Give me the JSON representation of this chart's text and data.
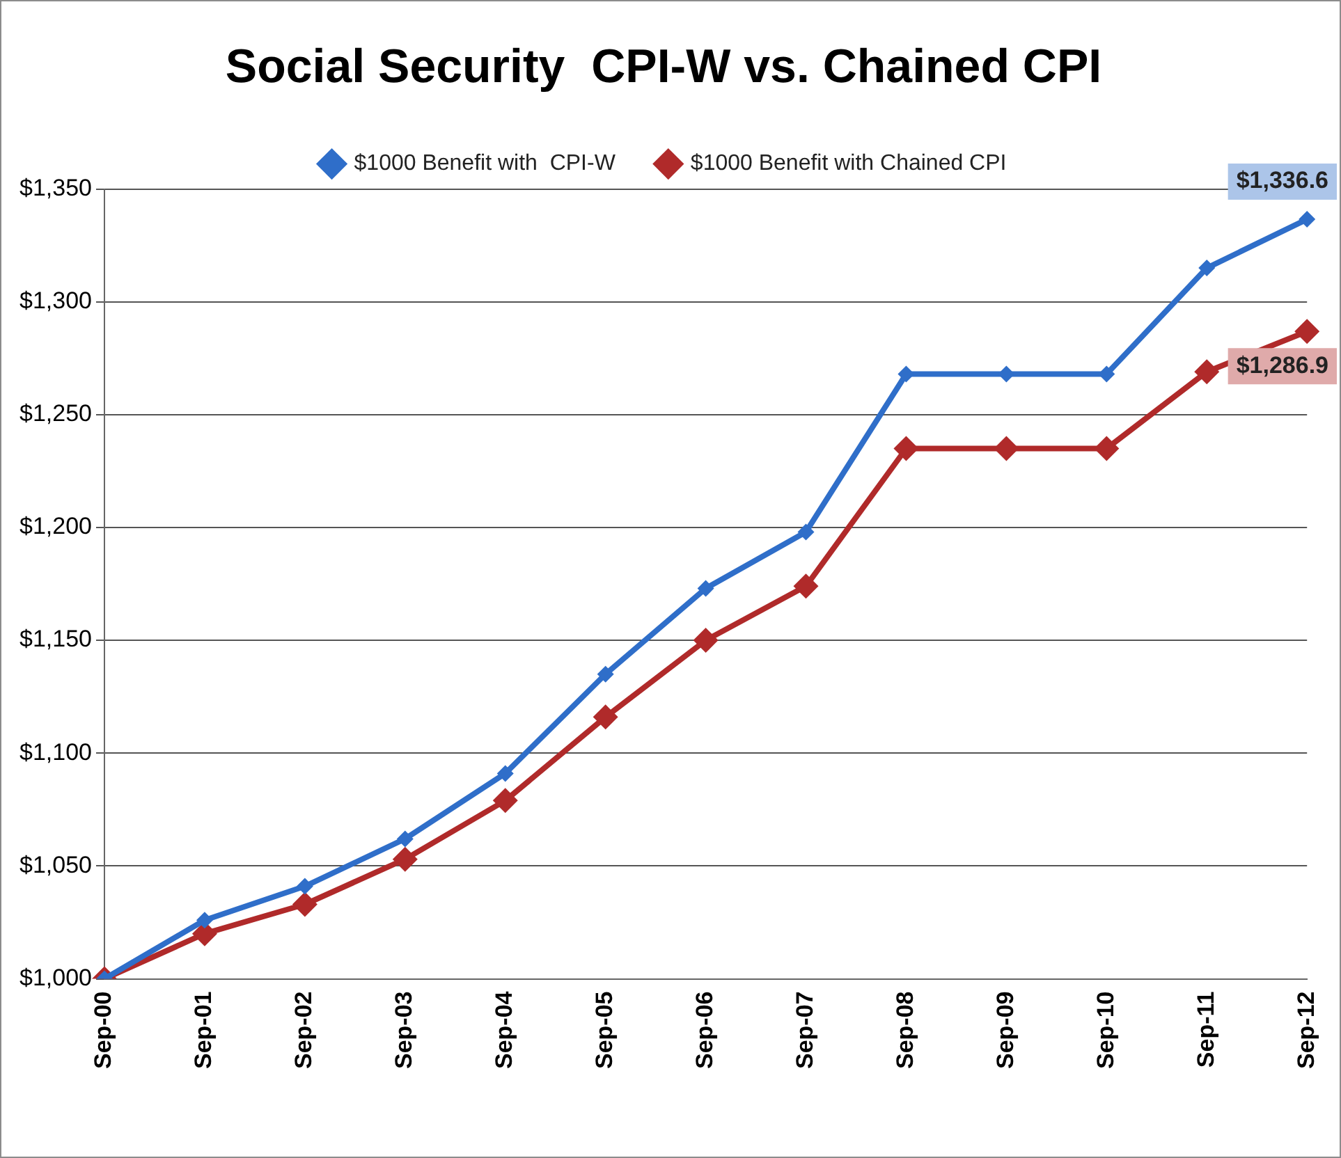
{
  "chart_data": {
    "type": "line",
    "title": "Social Security  CPI-W vs. Chained CPI",
    "categories": [
      "Sep-00",
      "Sep-01",
      "Sep-02",
      "Sep-03",
      "Sep-04",
      "Sep-05",
      "Sep-06",
      "Sep-07",
      "Sep-08",
      "Sep-09",
      "Sep-10",
      "Sep-11",
      "Sep-12"
    ],
    "series": [
      {
        "name": "$1000 Benefit with  CPI-W",
        "color": "#2f6ec9",
        "values": [
          1000,
          1026,
          1041,
          1062,
          1091,
          1135,
          1173,
          1198,
          1268,
          1268,
          1268,
          1315,
          1336.6
        ],
        "value_labels": [
          null,
          null,
          null,
          null,
          null,
          null,
          null,
          null,
          null,
          null,
          null,
          null,
          "$1,336.6"
        ]
      },
      {
        "name": "$1000 Benefit with Chained CPI",
        "color": "#b02a2a",
        "values": [
          1000,
          1020,
          1033,
          1053,
          1079,
          1116,
          1150,
          1174,
          1235,
          1235,
          1235,
          1269,
          1286.9
        ],
        "value_labels": [
          null,
          null,
          null,
          null,
          null,
          null,
          null,
          null,
          null,
          null,
          null,
          null,
          "$1,286.9"
        ]
      }
    ],
    "ylim": [
      1000,
      1350
    ],
    "yticks": [
      {
        "value": 1000,
        "label": "$1,000"
      },
      {
        "value": 1050,
        "label": "$1,050"
      },
      {
        "value": 1100,
        "label": "$1,100"
      },
      {
        "value": 1150,
        "label": "$1,150"
      },
      {
        "value": 1200,
        "label": "$1,200"
      },
      {
        "value": 1250,
        "label": "$1,250"
      },
      {
        "value": 1300,
        "label": "$1,300"
      },
      {
        "value": 1350,
        "label": "$1,350"
      }
    ],
    "grid": "y",
    "legend": "top",
    "marker": "diamond",
    "line_style": "solid"
  }
}
